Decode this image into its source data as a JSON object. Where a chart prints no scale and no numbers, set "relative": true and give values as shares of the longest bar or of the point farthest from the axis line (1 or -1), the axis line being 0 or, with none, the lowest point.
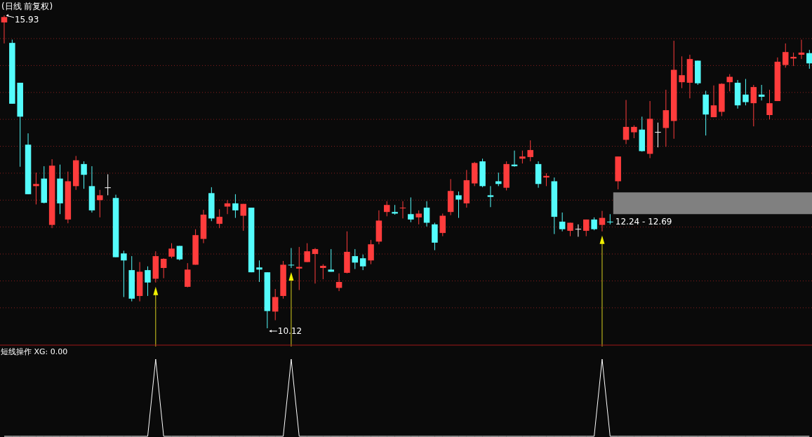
{
  "chart_data": [
    {
      "type": "candlestick",
      "title": "(日线 前复权)",
      "categories": [
        null,
        null,
        null,
        null,
        null,
        null,
        null,
        null,
        null,
        null,
        null,
        null,
        null,
        null,
        null,
        null,
        null,
        null,
        null,
        null,
        null,
        null,
        null,
        null,
        null,
        null,
        null,
        null,
        null,
        null,
        null,
        null,
        null,
        null,
        null,
        null,
        null,
        null,
        null,
        null,
        null,
        null,
        null,
        null,
        null,
        null,
        null,
        null,
        null,
        null,
        null,
        null,
        null,
        null,
        null,
        null,
        null,
        null,
        null,
        null,
        null,
        null,
        null,
        null,
        null,
        null,
        null,
        null,
        null,
        null,
        null,
        null,
        null,
        null,
        null,
        null,
        null,
        null,
        null,
        null,
        null,
        null,
        null,
        null,
        null,
        null,
        null,
        null,
        null,
        null,
        null,
        null,
        null,
        null,
        null,
        null,
        null,
        null,
        null,
        null,
        null,
        null
      ],
      "ohlc": [
        [
          15.8,
          15.93,
          15.41,
          15.9
        ],
        [
          15.42,
          15.48,
          14.29,
          14.29
        ],
        [
          14.68,
          14.68,
          13.12,
          14.05
        ],
        [
          13.53,
          13.74,
          12.61,
          12.61
        ],
        [
          12.76,
          13.01,
          12.42,
          12.8
        ],
        [
          12.9,
          13.13,
          12.44,
          12.45
        ],
        [
          12.04,
          13.26,
          11.98,
          13.14
        ],
        [
          12.9,
          13.16,
          12.24,
          12.44
        ],
        [
          12.14,
          13.03,
          12.07,
          12.85
        ],
        [
          12.76,
          13.32,
          12.69,
          13.24
        ],
        [
          13.17,
          13.22,
          12.71,
          12.97
        ],
        [
          12.76,
          13.13,
          12.27,
          12.31
        ],
        [
          12.5,
          12.69,
          12.18,
          12.59
        ],
        [
          12.73,
          12.98,
          12.59,
          12.73
        ],
        [
          12.54,
          12.6,
          11.44,
          11.44
        ],
        [
          11.51,
          11.56,
          10.7,
          11.38
        ],
        [
          11.2,
          11.46,
          10.62,
          10.67
        ],
        [
          10.72,
          11.35,
          10.62,
          11.17
        ],
        [
          11.2,
          11.27,
          10.72,
          10.97
        ],
        [
          11.04,
          11.55,
          10.97,
          11.46
        ],
        [
          11.24,
          11.42,
          11.05,
          11.41
        ],
        [
          11.45,
          11.7,
          11.42,
          11.6
        ],
        [
          11.65,
          11.65,
          11.38,
          11.4
        ],
        [
          10.89,
          11.33,
          10.88,
          11.21
        ],
        [
          11.3,
          11.96,
          11.3,
          11.85
        ],
        [
          11.78,
          12.32,
          11.7,
          12.23
        ],
        [
          12.63,
          12.74,
          12.11,
          12.16
        ],
        [
          12.06,
          12.33,
          11.98,
          12.19
        ],
        [
          12.38,
          12.5,
          12.24,
          12.44
        ],
        [
          12.44,
          12.61,
          12.17,
          12.31
        ],
        [
          12.21,
          12.43,
          11.93,
          12.43
        ],
        [
          12.36,
          12.36,
          11.16,
          11.16
        ],
        [
          11.25,
          11.38,
          10.98,
          11.21
        ],
        [
          11.16,
          11.16,
          10.12,
          10.44
        ],
        [
          10.43,
          10.85,
          10.27,
          10.7
        ],
        [
          10.72,
          11.37,
          10.67,
          11.3
        ],
        [
          11.3,
          11.61,
          11.24,
          11.29
        ],
        [
          11.23,
          11.63,
          10.83,
          11.26
        ],
        [
          11.35,
          11.7,
          11.35,
          11.55
        ],
        [
          11.5,
          11.61,
          10.95,
          11.59
        ],
        [
          11.24,
          11.31,
          11.03,
          11.28
        ],
        [
          11.21,
          11.59,
          11.17,
          11.17
        ],
        [
          10.87,
          11.14,
          10.81,
          10.98
        ],
        [
          11.15,
          11.92,
          11.14,
          11.54
        ],
        [
          11.46,
          11.59,
          11.22,
          11.34
        ],
        [
          11.42,
          11.49,
          11.2,
          11.27
        ],
        [
          11.38,
          11.76,
          11.31,
          11.68
        ],
        [
          11.73,
          12.31,
          11.68,
          12.12
        ],
        [
          12.28,
          12.48,
          12.2,
          12.41
        ],
        [
          12.28,
          12.41,
          12.23,
          12.25
        ],
        [
          12.35,
          12.48,
          12.16,
          12.36
        ],
        [
          12.24,
          12.55,
          12.09,
          12.14
        ],
        [
          12.18,
          12.31,
          12.05,
          12.25
        ],
        [
          12.36,
          12.48,
          12.01,
          12.08
        ],
        [
          12.05,
          12.08,
          11.57,
          11.71
        ],
        [
          11.89,
          12.25,
          11.83,
          12.21
        ],
        [
          12.28,
          12.89,
          12.22,
          12.67
        ],
        [
          12.59,
          12.66,
          12.17,
          12.51
        ],
        [
          12.44,
          13.06,
          12.36,
          12.87
        ],
        [
          12.81,
          13.21,
          12.76,
          13.19
        ],
        [
          13.22,
          13.27,
          12.74,
          12.76
        ],
        [
          12.59,
          12.76,
          12.37,
          12.56
        ],
        [
          12.85,
          13.01,
          12.76,
          12.8
        ],
        [
          12.73,
          13.22,
          12.68,
          13.17
        ],
        [
          13.16,
          13.42,
          13.12,
          13.13
        ],
        [
          13.27,
          13.42,
          13.18,
          13.31
        ],
        [
          13.3,
          13.61,
          13.22,
          13.43
        ],
        [
          13.17,
          13.22,
          12.73,
          12.8
        ],
        [
          12.92,
          13.0,
          12.76,
          12.95
        ],
        [
          12.85,
          12.92,
          11.87,
          12.19
        ],
        [
          12.1,
          12.27,
          11.92,
          11.96
        ],
        [
          11.93,
          12.08,
          11.83,
          12.08
        ],
        [
          11.96,
          12.05,
          11.82,
          11.96
        ],
        [
          11.93,
          12.14,
          11.83,
          12.14
        ],
        [
          12.14,
          12.18,
          11.94,
          11.96
        ],
        [
          12.04,
          12.3,
          11.92,
          12.17
        ],
        [
          12.1,
          12.24,
          12.05,
          12.09
        ],
        [
          12.85,
          13.31,
          12.7,
          13.31
        ],
        [
          13.62,
          14.36,
          13.54,
          13.86
        ],
        [
          13.76,
          13.89,
          13.65,
          13.86
        ],
        [
          13.81,
          14.05,
          13.4,
          13.41
        ],
        [
          13.36,
          14.34,
          13.28,
          14.01
        ],
        [
          13.76,
          13.94,
          13.48,
          13.76
        ],
        [
          13.84,
          14.55,
          13.49,
          14.17
        ],
        [
          13.97,
          15.46,
          13.64,
          14.92
        ],
        [
          14.69,
          15.17,
          14.58,
          14.82
        ],
        [
          14.68,
          15.2,
          14.39,
          15.12
        ],
        [
          15.09,
          15.09,
          14.64,
          14.67
        ],
        [
          14.46,
          14.53,
          13.7,
          14.09
        ],
        [
          14.04,
          14.63,
          14.04,
          14.26
        ],
        [
          14.14,
          14.67,
          14.06,
          14.66
        ],
        [
          14.69,
          14.84,
          14.52,
          14.79
        ],
        [
          14.68,
          14.73,
          14.2,
          14.26
        ],
        [
          14.46,
          14.75,
          14.26,
          14.32
        ],
        [
          14.3,
          14.64,
          13.87,
          14.6
        ],
        [
          14.46,
          14.64,
          14.35,
          14.42
        ],
        [
          14.08,
          14.55,
          14.0,
          14.3
        ],
        [
          14.34,
          15.15,
          14.34,
          15.07
        ],
        [
          15.01,
          15.41,
          14.96,
          15.25
        ],
        [
          15.13,
          15.24,
          14.99,
          15.16
        ],
        [
          15.2,
          15.48,
          15.12,
          15.24
        ],
        [
          15.23,
          15.29,
          14.94,
          15.04
        ]
      ],
      "yticks": [
        {
          "value": 15.5,
          "label": null
        },
        {
          "value": 15,
          "label": null
        },
        {
          "value": 14.5,
          "label": null
        },
        {
          "value": 14,
          "label": null
        },
        {
          "value": 13.5,
          "label": null
        },
        {
          "value": 13,
          "label": null
        },
        {
          "value": 12.5,
          "label": null
        },
        {
          "value": 12,
          "label": null
        },
        {
          "value": 11.5,
          "label": null
        },
        {
          "value": 11,
          "label": null
        },
        {
          "value": 10.5,
          "label": null
        }
      ],
      "grid": "y",
      "annotations": [
        "15.93",
        "10.12",
        "12.24 - 12.69"
      ]
    },
    {
      "type": "line",
      "title": "短线操作 XG: 0.00",
      "relative": true,
      "color": "#ffffff",
      "categories": [
        null,
        null,
        null,
        null,
        null,
        null,
        null,
        null,
        null,
        null,
        null,
        null,
        null,
        null,
        null,
        null,
        null,
        null,
        null,
        null,
        null,
        null,
        null,
        null,
        null,
        null,
        null,
        null,
        null,
        null,
        null,
        null,
        null,
        null,
        null,
        null,
        null,
        null,
        null,
        null,
        null,
        null,
        null,
        null,
        null,
        null,
        null,
        null,
        null,
        null,
        null,
        null,
        null,
        null,
        null,
        null,
        null,
        null,
        null,
        null,
        null,
        null,
        null,
        null,
        null,
        null,
        null,
        null,
        null,
        null,
        null,
        null,
        null,
        null,
        null,
        null,
        null,
        null,
        null,
        null,
        null,
        null,
        null,
        null,
        null,
        null,
        null,
        null,
        null,
        null,
        null,
        null,
        null,
        null,
        null,
        null,
        null,
        null,
        null,
        null,
        null,
        null
      ],
      "values": [
        0,
        0,
        0,
        0,
        0,
        0,
        0,
        0,
        0,
        0,
        0,
        0,
        0,
        0,
        0,
        0,
        0,
        0,
        0,
        1,
        0,
        0,
        0,
        0,
        0,
        0,
        0,
        0,
        0,
        0,
        0,
        0,
        0,
        0,
        0,
        0,
        1,
        0,
        0,
        0,
        0,
        0,
        0,
        0,
        0,
        0,
        0,
        0,
        0,
        0,
        0,
        0,
        0,
        0,
        0,
        0,
        0,
        0,
        0,
        0,
        0,
        0,
        0,
        0,
        0,
        0,
        0,
        0,
        0,
        0,
        0,
        0,
        0,
        0,
        0,
        1,
        0,
        0,
        0,
        0,
        0,
        0,
        0,
        0,
        0,
        0,
        0,
        0,
        0,
        0,
        0,
        0,
        0,
        0,
        0,
        0,
        0,
        0,
        0,
        0,
        0,
        0
      ]
    }
  ]
}
